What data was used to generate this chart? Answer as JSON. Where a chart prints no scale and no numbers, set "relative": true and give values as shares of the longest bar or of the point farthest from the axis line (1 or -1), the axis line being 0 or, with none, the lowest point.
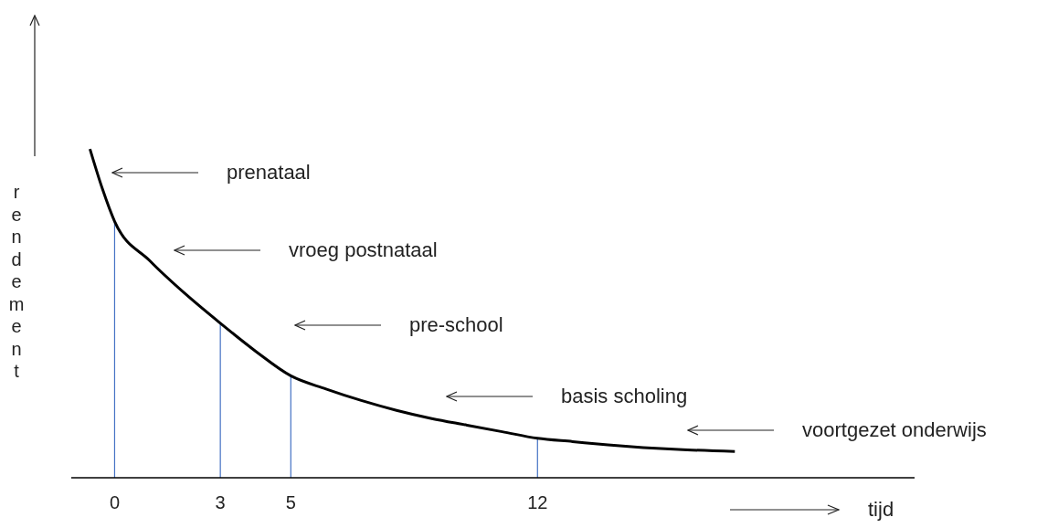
{
  "chart_data": {
    "type": "line",
    "relative": true,
    "xlabel": "tijd",
    "ylabel": "rendement",
    "x": [
      -0.7,
      -0.35,
      0,
      1,
      2,
      3,
      4,
      5,
      6,
      7,
      8,
      9,
      10,
      11,
      12,
      13,
      14,
      15,
      16,
      17.6
    ],
    "series": [
      {
        "color": "#000000",
        "values": [
          1,
          0.88,
          0.78,
          0.66,
          0.56,
          0.47,
          0.385,
          0.31,
          0.27,
          0.235,
          0.205,
          0.18,
          0.16,
          0.14,
          0.12,
          0.11,
          0.1,
          0.092,
          0.086,
          0.08
        ]
      }
    ],
    "xlim": [
      -1.23,
      22.7
    ],
    "xticks": [
      0,
      3,
      5,
      12
    ],
    "tick_labels": "x",
    "grid": false,
    "legend": false,
    "marker": "none",
    "line_style": "solid",
    "ref_lines": [
      {
        "axis": "x",
        "value": 0,
        "color": "#4472c4"
      },
      {
        "axis": "x",
        "value": 3,
        "color": "#4472c4"
      },
      {
        "axis": "x",
        "value": 5,
        "color": "#4472c4"
      },
      {
        "axis": "x",
        "value": 12,
        "color": "#4472c4"
      }
    ],
    "annotations": [
      "prenataal",
      "vroeg postnataal",
      "pre-school",
      "basis scholing",
      "voortgezet onderwijs"
    ]
  }
}
